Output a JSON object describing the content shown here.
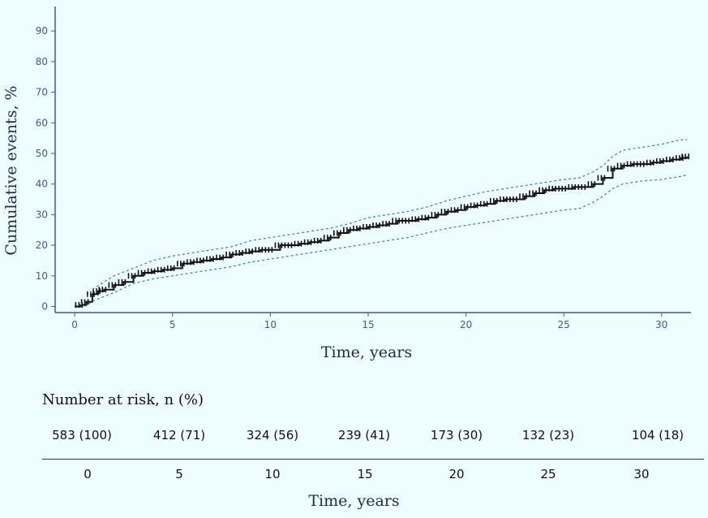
{
  "chart_data": {
    "type": "line",
    "title": "",
    "xlabel": "Time, years",
    "ylabel": "Cumulative events, %",
    "xlim": [
      -1,
      31.5
    ],
    "ylim": [
      -2,
      98
    ],
    "xticks": [
      0,
      5,
      10,
      15,
      20,
      25,
      30
    ],
    "yticks": [
      0,
      10,
      20,
      30,
      40,
      50,
      60,
      70,
      80,
      90
    ],
    "grid": false,
    "series": [
      {
        "name": "Cumulative events",
        "style": "solid-step",
        "color": "#111111",
        "x": [
          0,
          0.3,
          0.6,
          0.9,
          1.2,
          1.5,
          2,
          2.5,
          3,
          3.5,
          4,
          4.5,
          5,
          5.5,
          6,
          6.5,
          7,
          7.5,
          8,
          8.5,
          9,
          9.5,
          10,
          10.5,
          11,
          11.5,
          12,
          12.5,
          13,
          13.5,
          14,
          14.5,
          15,
          15.5,
          16,
          16.5,
          17,
          17.5,
          18,
          18.5,
          19,
          19.5,
          20,
          20.5,
          21,
          21.5,
          22,
          22.5,
          23,
          23.5,
          24,
          24.5,
          25,
          25.5,
          26,
          26.5,
          27,
          27.5,
          28,
          28.5,
          29,
          29.5,
          30,
          30.5,
          31,
          31.3
        ],
        "values": [
          0,
          0.5,
          1.5,
          4,
          5,
          5.5,
          7,
          8,
          10,
          11,
          11.5,
          12,
          12.5,
          14,
          14.5,
          15,
          15.5,
          16,
          17,
          17.5,
          18,
          18.5,
          18.5,
          20,
          20,
          20.5,
          21,
          21.5,
          22.5,
          24,
          25,
          25.5,
          26,
          26.5,
          27,
          28,
          28,
          28.5,
          29,
          30,
          31,
          31.5,
          32.5,
          33,
          33.5,
          34.5,
          35,
          35,
          36,
          37,
          38,
          38.5,
          38.5,
          39,
          39,
          40,
          42,
          45,
          46,
          46.5,
          46.5,
          47,
          47.5,
          48,
          48.5,
          49
        ]
      },
      {
        "name": "Upper 95% CI",
        "style": "dashed",
        "color": "#2e7fcf",
        "x": [
          0.3,
          1,
          2,
          3,
          4,
          5,
          6,
          7,
          8,
          9,
          10,
          11,
          12,
          13,
          14,
          15,
          16,
          17,
          18,
          19,
          20,
          21,
          22,
          23,
          24,
          25,
          25.8,
          26.5,
          27,
          27.5,
          28,
          29,
          30,
          31,
          31.3
        ],
        "values": [
          0.5,
          6,
          10,
          12.5,
          15,
          16.5,
          17.5,
          18.5,
          19.5,
          21.5,
          22.5,
          23.5,
          24.5,
          25.5,
          27,
          29,
          30,
          31,
          32.5,
          34.5,
          36,
          37.5,
          38.5,
          39.5,
          40.5,
          41.5,
          42,
          44,
          46,
          49,
          51,
          52,
          53,
          54.5,
          54.5
        ]
      },
      {
        "name": "Lower 95% CI",
        "style": "dashed",
        "color": "#2e7fcf",
        "x": [
          0.5,
          1,
          2,
          3,
          4,
          5,
          6,
          7,
          8,
          9,
          10,
          11,
          12,
          13,
          14,
          15,
          16,
          17,
          18,
          19,
          20,
          21,
          22,
          23,
          24,
          25,
          25.8,
          26.5,
          27,
          27.5,
          28,
          29,
          30,
          31,
          31.3
        ],
        "values": [
          0,
          2,
          4.5,
          7.5,
          9,
          10,
          11,
          12,
          13,
          14.5,
          15.5,
          16.5,
          17.5,
          18.5,
          19.5,
          20.5,
          21.5,
          22.5,
          24,
          25.5,
          26.5,
          27.5,
          28.5,
          29.5,
          30.5,
          31.5,
          32,
          34,
          36,
          38.5,
          40,
          41,
          41.5,
          42.5,
          43
        ]
      }
    ]
  },
  "risk_table": {
    "title": "Number at risk, n (%)",
    "values": [
      "583 (100)",
      "412 (71)",
      "324 (56)",
      "239 (41)",
      "173 (30)",
      "132 (23)",
      "104 (18)"
    ],
    "x_ticks": [
      "0",
      "5",
      "10",
      "15",
      "20",
      "25",
      "30"
    ],
    "xlabel": "Time, years"
  },
  "colors": {
    "background": "#eefdff",
    "axis": "#3a5a9c",
    "ci": "#2e7fcf",
    "line": "#111111"
  }
}
